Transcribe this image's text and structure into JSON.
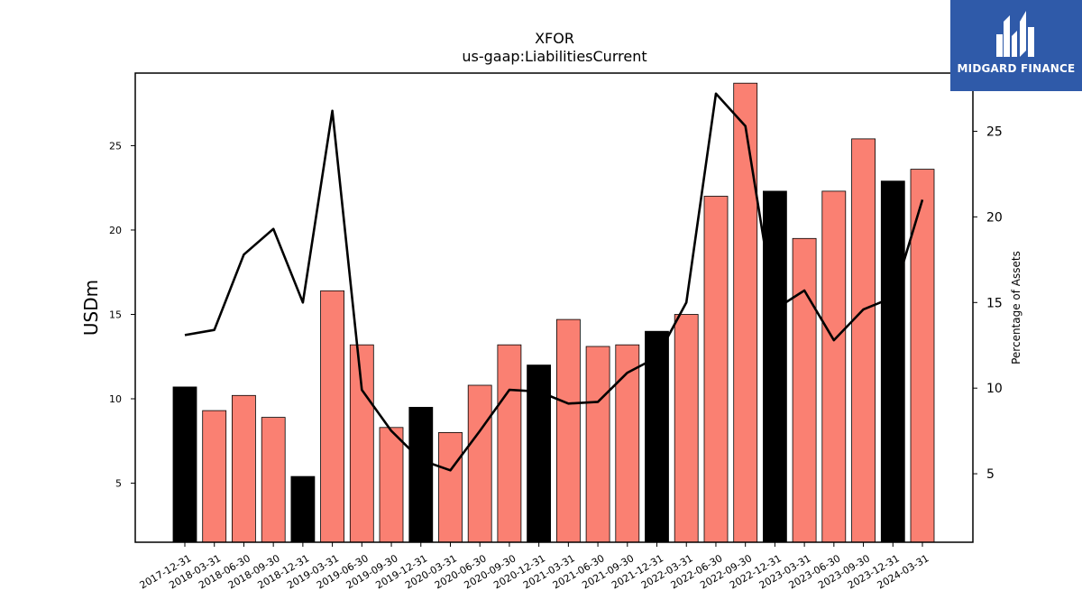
{
  "chart_data": {
    "type": "bar",
    "title": "XFOR",
    "subtitle": "us-gaap:LiabilitiesCurrent",
    "ylabel": "USDm",
    "y2label": "Percentage of Assets",
    "ylim": [
      1.5,
      29.3
    ],
    "y2lim": [
      1.0,
      28.4
    ],
    "yticks": [
      5,
      10,
      15,
      20,
      25
    ],
    "y2ticks": [
      5,
      10,
      15,
      20,
      25
    ],
    "categories": [
      "2017-12-31",
      "2018-03-31",
      "2018-06-30",
      "2018-09-30",
      "2018-12-31",
      "2019-03-31",
      "2019-06-30",
      "2019-09-30",
      "2019-12-31",
      "2020-03-31",
      "2020-06-30",
      "2020-09-30",
      "2020-12-31",
      "2021-03-31",
      "2021-06-30",
      "2021-09-30",
      "2021-12-31",
      "2022-03-31",
      "2022-06-30",
      "2022-09-30",
      "2022-12-31",
      "2023-03-31",
      "2023-06-30",
      "2023-09-30",
      "2023-12-31",
      "2024-03-31"
    ],
    "series": [
      {
        "type": "bar",
        "axis": "left",
        "values": [
          10.7,
          9.3,
          10.2,
          8.9,
          5.4,
          16.4,
          13.2,
          8.3,
          9.5,
          8.0,
          10.8,
          13.2,
          12.0,
          14.7,
          13.1,
          13.2,
          14.0,
          15.0,
          22.0,
          28.7,
          22.3,
          19.5,
          22.3,
          25.4,
          22.9,
          23.6
        ],
        "highlight": [
          true,
          false,
          false,
          false,
          true,
          false,
          false,
          false,
          true,
          false,
          false,
          false,
          true,
          false,
          false,
          false,
          true,
          false,
          false,
          false,
          true,
          false,
          false,
          false,
          true,
          false
        ]
      },
      {
        "type": "line",
        "axis": "right",
        "values": [
          13.1,
          13.4,
          17.8,
          19.3,
          15.0,
          26.2,
          9.9,
          7.5,
          5.8,
          5.2,
          7.5,
          9.9,
          9.8,
          9.1,
          9.2,
          10.9,
          11.8,
          15.0,
          27.2,
          25.3,
          14.6,
          15.7,
          12.8,
          14.6,
          15.3,
          21.0
        ]
      }
    ],
    "colors": {
      "bar": "#fa8072",
      "bar_highlight": "#000000",
      "line": "#000000"
    },
    "grid": false
  },
  "logo": {
    "text": "MIDGARD FINANCE",
    "background": "#2f5aa9"
  }
}
